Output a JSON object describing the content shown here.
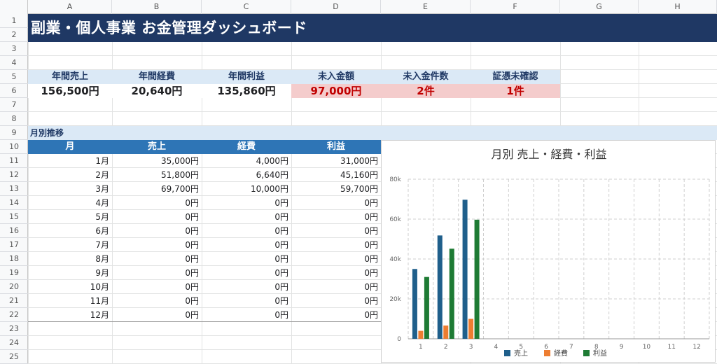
{
  "columns": [
    "A",
    "B",
    "C",
    "D",
    "E",
    "F",
    "G",
    "H"
  ],
  "rows": [
    "1",
    "2",
    "3",
    "4",
    "5",
    "6",
    "7",
    "8",
    "9",
    "10",
    "11",
    "12",
    "13",
    "14",
    "15",
    "16",
    "17",
    "18",
    "19",
    "20",
    "21",
    "22",
    "23",
    "24",
    "25"
  ],
  "title": "副業・個人事業 お金管理ダッシュボード",
  "kpis": [
    {
      "label": "年間売上",
      "value": "156,500円",
      "alert": false
    },
    {
      "label": "年間経費",
      "value": "20,640円",
      "alert": false
    },
    {
      "label": "年間利益",
      "value": "135,860円",
      "alert": false
    },
    {
      "label": "未入金額",
      "value": "97,000円",
      "alert": true
    },
    {
      "label": "未入金件数",
      "value": "2件",
      "alert": true
    },
    {
      "label": "証憑未確認",
      "value": "1件",
      "alert": true
    }
  ],
  "section_label": "月別推移",
  "table": {
    "headers": [
      "月",
      "売上",
      "経費",
      "利益"
    ],
    "rows": [
      [
        "1月",
        "35,000円",
        "4,000円",
        "31,000円"
      ],
      [
        "2月",
        "51,800円",
        "6,640円",
        "45,160円"
      ],
      [
        "3月",
        "69,700円",
        "10,000円",
        "59,700円"
      ],
      [
        "4月",
        "0円",
        "0円",
        "0円"
      ],
      [
        "5月",
        "0円",
        "0円",
        "0円"
      ],
      [
        "6月",
        "0円",
        "0円",
        "0円"
      ],
      [
        "7月",
        "0円",
        "0円",
        "0円"
      ],
      [
        "8月",
        "0円",
        "0円",
        "0円"
      ],
      [
        "9月",
        "0円",
        "0円",
        "0円"
      ],
      [
        "10月",
        "0円",
        "0円",
        "0円"
      ],
      [
        "11月",
        "0円",
        "0円",
        "0円"
      ],
      [
        "12月",
        "0円",
        "0円",
        "0円"
      ]
    ]
  },
  "colors": {
    "title_bg": "#1f3864",
    "header_bg": "#2e75b6",
    "kpi_label_bg": "#dbe9f6",
    "alert_bg": "#f4cccc",
    "alert_text": "#c00000",
    "series_sales": "#1f5f8b",
    "series_expense": "#ed7d31",
    "series_profit": "#1e7b34"
  },
  "chart_data": {
    "type": "bar",
    "title": "月別 売上・経費・利益",
    "categories": [
      "1",
      "2",
      "3",
      "4",
      "5",
      "6",
      "7",
      "8",
      "9",
      "10",
      "11",
      "12"
    ],
    "series": [
      {
        "name": "売上",
        "values": [
          35000,
          51800,
          69700,
          0,
          0,
          0,
          0,
          0,
          0,
          0,
          0,
          0
        ]
      },
      {
        "name": "経費",
        "values": [
          4000,
          6640,
          10000,
          0,
          0,
          0,
          0,
          0,
          0,
          0,
          0,
          0
        ]
      },
      {
        "name": "利益",
        "values": [
          31000,
          45160,
          59700,
          0,
          0,
          0,
          0,
          0,
          0,
          0,
          0,
          0
        ]
      }
    ],
    "ylim": [
      0,
      80000
    ],
    "yticks": [
      "0",
      "20k",
      "40k",
      "60k",
      "80k"
    ],
    "grid": true,
    "legend": "bottom"
  }
}
